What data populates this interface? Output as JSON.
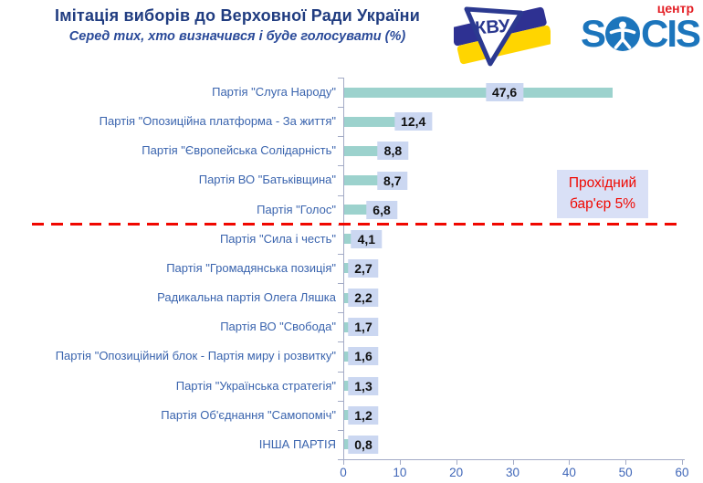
{
  "header": {
    "title": "Імітація виборів до Верховної Ради України",
    "subtitle": "Серед тих, хто визначився і буде голосувати (%)",
    "kvu_logo_text": "КВУ",
    "socis": {
      "prefix": "S",
      "suffix": "CIS",
      "badge": "центр"
    }
  },
  "threshold": {
    "label": "Прохідний бар'єр 5%",
    "value": 5
  },
  "chart_data": {
    "type": "bar",
    "orientation": "horizontal",
    "title": "Імітація виборів до Верховної Ради України",
    "subtitle": "Серед тих, хто визначився і буде голосувати (%)",
    "categories": [
      "Партія \"Слуга Народу\"",
      "Партія \"Опозиційна платформа - За життя\"",
      "Партія \"Європейська Солідарність\"",
      "Партія ВО \"Батьківщина\"",
      "Партія \"Голос\"",
      "Партія \"Сила і честь\"",
      "Партія \"Громадянська позиція\"",
      "Радикальна партія Олега Ляшка",
      "Партія ВО \"Свобода\"",
      "Партія \"Опозиційний блок - Партія миру і розвитку\"",
      "Партія \"Українська стратегія\"",
      "Партія Об'єднання \"Самопоміч\"",
      "ІНША ПАРТІЯ"
    ],
    "values": [
      47.6,
      12.4,
      8.8,
      8.7,
      6.8,
      4.1,
      2.7,
      2.2,
      1.7,
      1.6,
      1.3,
      1.2,
      0.8
    ],
    "value_labels": [
      "47,6",
      "12,4",
      "8,8",
      "8,7",
      "6,8",
      "4,1",
      "2,7",
      "2,2",
      "1,7",
      "1,6",
      "1,3",
      "1,2",
      "0,8"
    ],
    "xlim": [
      0,
      60
    ],
    "x_ticks": [
      "0",
      "10",
      "20",
      "30",
      "40",
      "50",
      "60"
    ],
    "grid": false,
    "legend": false,
    "annotations": [
      {
        "text": "Прохідний бар'єр 5%",
        "type": "dashed-threshold-line",
        "between_categories": [
          "Партія \"Голос\"",
          "Партія \"Сила і честь\""
        ]
      }
    ],
    "colors": {
      "bar": "#9CD2CD",
      "value_label_bg": "#CBD7F1",
      "threshold_box_bg": "#D9E0F6",
      "threshold_red": "#F00700",
      "title_blue": "#203C80",
      "category_blue": "#3A64AE",
      "tick_blue": "#3F66B8",
      "axis": "#A3ABC6",
      "socis_blue": "#1C75BC",
      "centr_red": "#E31E24",
      "flag_blue": "#2E3192",
      "flag_yellow": "#FFD500"
    }
  }
}
